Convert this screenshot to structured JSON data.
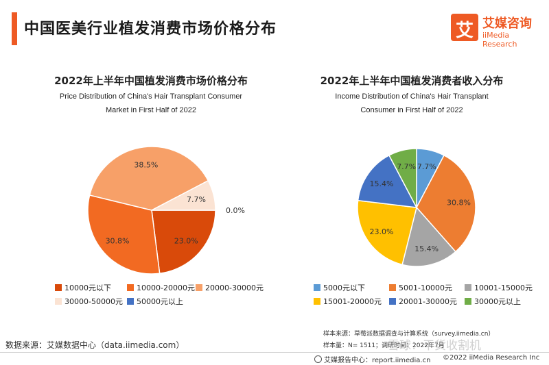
{
  "header": {
    "title": "中国医美行业植发消费市场价格分布",
    "logo_cn": "艾媒咨询",
    "logo_en": "iiMedia Research",
    "logo_char": "艾"
  },
  "colors": {
    "accent": "#ee5a24"
  },
  "chart_data": [
    {
      "type": "pie",
      "title": "2022年上半年中国植发消费市场价格分布",
      "subtitle_line1": "Price Distribution of China's Hair Transplant Consumer",
      "subtitle_line2": "Market in First Half of 2022",
      "legend_position": "bottom",
      "slices": [
        {
          "label": "10000元以下",
          "value": 23.0,
          "value_label": "23.0%",
          "color": "#d94a0a"
        },
        {
          "label": "10000-20000元",
          "value": 30.8,
          "value_label": "30.8%",
          "color": "#f26a22"
        },
        {
          "label": "20000-30000元",
          "value": 38.5,
          "value_label": "38.5%",
          "color": "#f7a068"
        },
        {
          "label": "30000-50000元",
          "value": 7.7,
          "value_label": "7.7%",
          "color": "#fbe3d3"
        },
        {
          "label": "50000元以上",
          "value": 0.0,
          "value_label": "0.0%",
          "color": "#4472c4"
        }
      ]
    },
    {
      "type": "pie",
      "title": "2022年上半年中国植发消费者收入分布",
      "subtitle_line1": "Income Distribution of China's Hair Transplant",
      "subtitle_line2": "Consumer in First Half of 2022",
      "legend_position": "bottom",
      "slices": [
        {
          "label": "5000元以下",
          "value": 7.7,
          "value_label": "7.7%",
          "color": "#5b9bd5"
        },
        {
          "label": "5001-10000元",
          "value": 30.8,
          "value_label": "30.8%",
          "color": "#ed7d31"
        },
        {
          "label": "10001-15000元",
          "value": 15.4,
          "value_label": "15.4%",
          "color": "#a5a5a5"
        },
        {
          "label": "15001-20000元",
          "value": 23.0,
          "value_label": "23.0%",
          "color": "#ffc000"
        },
        {
          "label": "20001-30000元",
          "value": 15.4,
          "value_label": "15.4%",
          "color": "#4472c4"
        },
        {
          "label": "30000元以上",
          "value": 7.7,
          "value_label": "7.7%",
          "color": "#70ad47"
        }
      ]
    }
  ],
  "notes": {
    "sample_source": "样本来源：草莓派数据调查与计算系统（survey.iimedia.cn）",
    "sample_size": "样本量：N= 1511；调研时间：2022年7月",
    "data_source": "数据来源：艾媒数据中心（data.iimedia.com）",
    "report_center": "艾媒报告中心：report.iimedia.cn",
    "copyright": "©2022  iiMedia Research  Inc",
    "watermark": "雪球：干货收割机"
  }
}
